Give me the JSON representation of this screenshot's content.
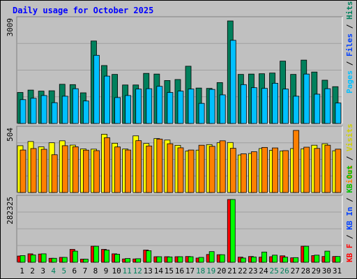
{
  "chart_data": {
    "type": "bar",
    "title": "Daily usage for October 2025",
    "categories": [
      "1",
      "2",
      "3",
      "4",
      "5",
      "6",
      "7",
      "8",
      "9",
      "10",
      "11",
      "12",
      "13",
      "14",
      "15",
      "16",
      "17",
      "18",
      "19",
      "20",
      "21",
      "22",
      "23",
      "24",
      "25",
      "26",
      "27",
      "28",
      "29",
      "30",
      "31"
    ],
    "weekend_days": [
      "4",
      "5",
      "11",
      "12",
      "18",
      "19",
      "25",
      "26"
    ],
    "panels": [
      {
        "name": "hits-panel",
        "max_label": "3009",
        "ylim": [
          0,
          3009
        ],
        "series": [
          {
            "name": "Hits",
            "color": "#00805c",
            "values": [
              910,
              980,
              950,
              960,
              1150,
              1140,
              900,
              2420,
              1700,
              1440,
              1130,
              1130,
              1470,
              1450,
              1260,
              1290,
              1680,
              1040,
              1030,
              1200,
              3009,
              1440,
              1450,
              1460,
              1480,
              1830,
              1440,
              1860,
              1510,
              1270,
              1080
            ]
          },
          {
            "name": "Files",
            "color": "#00c0ff",
            "values": [
              700,
              740,
              820,
              610,
              800,
              1020,
              660,
              2000,
              1390,
              760,
              820,
              1010,
              1020,
              1090,
              910,
              950,
              1010,
              590,
              1000,
              840,
              2440,
              1140,
              1050,
              1030,
              1180,
              1010,
              800,
              1450,
              860,
              1020,
              600
            ]
          },
          {
            "name": "Pages",
            "color": "#00c0ff",
            "values": []
          }
        ]
      },
      {
        "name": "visits-panel",
        "max_label": "504",
        "ylim": [
          0,
          504
        ],
        "series": [
          {
            "name": "Visits",
            "color": "#ffff00",
            "values": [
              380,
              414,
              371,
              404,
              420,
              385,
              354,
              352,
              473,
              400,
              353,
              460,
              398,
              438,
              426,
              383,
              337,
              344,
              389,
              404,
              406,
              305,
              317,
              357,
              343,
              337,
              357,
              355,
              384,
              396,
              339
            ]
          },
          {
            "name": "Sites",
            "color": "#ff8000",
            "values": [
              345,
              357,
              351,
              307,
              380,
              371,
              344,
              340,
              445,
              370,
              345,
              421,
              378,
              434,
              396,
              363,
              345,
              384,
              375,
              420,
              359,
              314,
              331,
              366,
              362,
              340,
              504,
              368,
              358,
              384,
              352
            ]
          }
        ]
      },
      {
        "name": "kbytes-panel",
        "max_label": "282325",
        "ylim": [
          0,
          282325
        ],
        "series": [
          {
            "name": "KB F",
            "color": "#ff0000",
            "values": [
              0,
              0,
              0,
              0,
              0,
              0,
              0,
              0,
              0,
              0,
              0,
              0,
              0,
              0,
              0,
              0,
              0,
              0,
              0,
              0,
              0,
              0,
              0,
              0,
              0,
              0,
              0,
              0,
              0,
              0,
              0
            ]
          },
          {
            "name": "KB In",
            "color": "#00c0ff",
            "values": [
              0,
              0,
              0,
              0,
              0,
              0,
              0,
              0,
              0,
              0,
              0,
              0,
              0,
              0,
              0,
              0,
              0,
              0,
              0,
              0,
              0,
              0,
              0,
              0,
              0,
              0,
              0,
              0,
              0,
              0,
              0
            ]
          },
          {
            "name": "KB Out",
            "color": "#00ff00",
            "values": [
              0,
              0,
              0,
              0,
              0,
              0,
              0,
              0,
              0,
              0,
              0,
              0,
              0,
              0,
              0,
              0,
              0,
              0,
              0,
              0,
              0,
              0,
              0,
              0,
              0,
              0,
              0,
              0,
              0,
              0,
              0
            ]
          }
        ],
        "pairs": [
          {
            "name": "KB F",
            "color": "#ff0000",
            "values": [
              28000,
              38000,
              37000,
              18000,
              22000,
              58000,
              14000,
              72000,
              58000,
              38000,
              15000,
              15000,
              55000,
              25000,
              25000,
              25000,
              26000,
              19000,
              35000,
              34000,
              282325,
              23000,
              26000,
              23000,
              25000,
              29000,
              20000,
              72000,
              30000,
              26000,
              26000
            ]
          },
          {
            "name": "KB Out",
            "color": "#00ff00",
            "values": [
              30000,
              33000,
              38000,
              18000,
              22000,
              50000,
              14000,
              72000,
              55000,
              36000,
              17000,
              16000,
              52000,
              25000,
              24000,
              25000,
              25000,
              22000,
              48000,
              34000,
              282325,
              19000,
              24000,
              46000,
              32000,
              23000,
              21000,
              72000,
              32000,
              50000,
              26000
            ]
          }
        ]
      }
    ],
    "right_labels": {
      "top": [
        {
          "text": "Pages",
          "color": "#00c0ff"
        },
        {
          "text": " / ",
          "color": "#000000"
        },
        {
          "text": "Files",
          "color": "#0040ff"
        },
        {
          "text": " / ",
          "color": "#000000"
        },
        {
          "text": "Hits",
          "color": "#00805c"
        }
      ],
      "middle": [
        {
          "text": "Sites",
          "color": "#ff8000"
        },
        {
          "text": " / ",
          "color": "#000000"
        },
        {
          "text": "Visits",
          "color": "#d0d000"
        }
      ],
      "bottom": [
        {
          "text": "KB F",
          "color": "#ff0000"
        },
        {
          "text": " / ",
          "color": "#000000"
        },
        {
          "text": "KB In",
          "color": "#0040ff"
        },
        {
          "text": " / ",
          "color": "#000000"
        },
        {
          "text": "KB Out",
          "color": "#00c000"
        }
      ]
    },
    "colors": {
      "title": "#0000ff",
      "weekday_label": "#000000",
      "weekend_label": "#00805c",
      "panel_bg": "#c0c0c0"
    }
  }
}
